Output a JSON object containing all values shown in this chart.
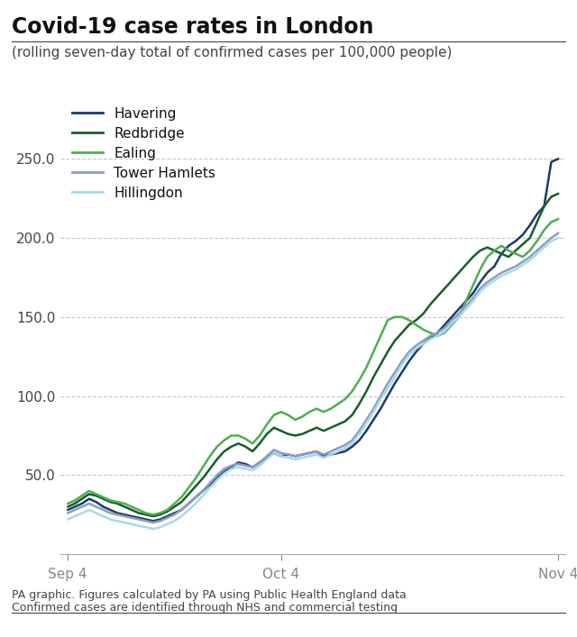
{
  "title": "Covid-19 case rates in London",
  "subtitle": "(rolling seven-day total of confirmed cases per 100,000 people)",
  "footer_line1": "PA graphic. Figures calculated by PA using Public Health England data",
  "footer_line2": "Confirmed cases are identified through NHS and commercial testing",
  "xtick_labels": [
    "Sep 4",
    "Oct 4",
    "Nov 4"
  ],
  "ytick_values": [
    50.0,
    100.0,
    150.0,
    200.0,
    250.0
  ],
  "ylim": [
    0,
    290
  ],
  "series": {
    "Havering": {
      "color": "#1b3a6b",
      "data": [
        28,
        30,
        32,
        35,
        33,
        30,
        28,
        26,
        25,
        24,
        23,
        22,
        21,
        22,
        24,
        26,
        28,
        32,
        36,
        40,
        44,
        48,
        52,
        55,
        58,
        57,
        55,
        58,
        61,
        64,
        62,
        63,
        62,
        63,
        64,
        65,
        62,
        63,
        64,
        65,
        68,
        72,
        78,
        85,
        92,
        100,
        108,
        115,
        122,
        128,
        133,
        137,
        140,
        145,
        150,
        155,
        160,
        165,
        172,
        178,
        182,
        190,
        195,
        198,
        202,
        208,
        215,
        220,
        248,
        250
      ]
    },
    "Redbridge": {
      "color": "#1a5c2a",
      "data": [
        30,
        32,
        35,
        38,
        37,
        35,
        33,
        32,
        30,
        28,
        26,
        25,
        24,
        25,
        27,
        30,
        33,
        38,
        43,
        48,
        54,
        60,
        65,
        68,
        70,
        68,
        65,
        70,
        76,
        80,
        78,
        76,
        75,
        76,
        78,
        80,
        78,
        80,
        82,
        84,
        88,
        95,
        103,
        112,
        120,
        128,
        135,
        140,
        145,
        148,
        152,
        158,
        163,
        168,
        173,
        178,
        183,
        188,
        192,
        194,
        192,
        190,
        188,
        192,
        196,
        200,
        210,
        220,
        226,
        228
      ]
    },
    "Ealing": {
      "color": "#4caf50",
      "data": [
        32,
        34,
        37,
        40,
        38,
        36,
        34,
        33,
        32,
        30,
        28,
        26,
        25,
        26,
        28,
        32,
        36,
        42,
        48,
        55,
        62,
        68,
        72,
        75,
        75,
        73,
        70,
        75,
        82,
        88,
        90,
        88,
        85,
        87,
        90,
        92,
        90,
        92,
        95,
        98,
        103,
        110,
        118,
        128,
        138,
        148,
        150,
        150,
        148,
        145,
        142,
        140,
        138,
        140,
        145,
        150,
        160,
        170,
        180,
        188,
        192,
        195,
        192,
        190,
        188,
        192,
        198,
        205,
        210,
        212
      ]
    },
    "Tower Hamlets": {
      "color": "#8b9dc3",
      "data": [
        26,
        28,
        30,
        32,
        30,
        28,
        26,
        25,
        24,
        23,
        22,
        21,
        20,
        21,
        23,
        25,
        28,
        32,
        36,
        40,
        45,
        50,
        54,
        56,
        57,
        56,
        55,
        58,
        62,
        66,
        64,
        63,
        62,
        63,
        64,
        65,
        63,
        65,
        67,
        69,
        72,
        78,
        85,
        92,
        100,
        108,
        115,
        122,
        128,
        132,
        135,
        138,
        140,
        143,
        148,
        152,
        157,
        162,
        168,
        172,
        175,
        178,
        180,
        182,
        185,
        188,
        192,
        196,
        200,
        203
      ]
    },
    "Hillingdon": {
      "color": "#a8d8ea",
      "data": [
        22,
        24,
        26,
        28,
        26,
        24,
        22,
        21,
        20,
        19,
        18,
        17,
        16,
        17,
        19,
        21,
        24,
        28,
        32,
        37,
        42,
        47,
        51,
        54,
        55,
        54,
        53,
        56,
        60,
        64,
        62,
        61,
        60,
        61,
        62,
        63,
        61,
        63,
        65,
        67,
        70,
        76,
        83,
        90,
        98,
        105,
        112,
        120,
        126,
        130,
        133,
        136,
        138,
        141,
        146,
        150,
        155,
        160,
        166,
        170,
        173,
        176,
        178,
        180,
        183,
        186,
        190,
        194,
        198,
        200
      ]
    }
  },
  "title_fontsize": 17,
  "subtitle_fontsize": 11,
  "tick_fontsize": 11,
  "legend_fontsize": 11,
  "footer_fontsize": 9,
  "background_color": "#ffffff",
  "grid_color": "#c8c8c8",
  "title_color": "#111111",
  "text_color": "#444444",
  "legend_items": [
    "Havering",
    "Redbridge",
    "Ealing",
    "Tower Hamlets",
    "Hillingdon"
  ]
}
